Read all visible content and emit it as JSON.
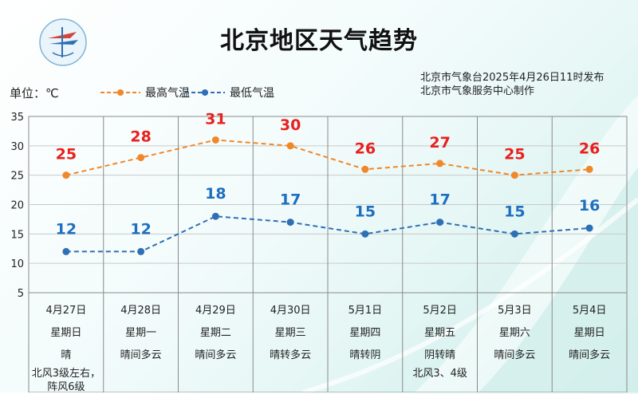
{
  "header": {
    "title": "北京地区天气趋势",
    "source_line1": "北京市气象台2025年4月26日11时发布",
    "source_line2": "北京市气象服务中心制作",
    "unit": "单位：℃"
  },
  "legend": {
    "high": "最高气温",
    "low": "最低气温"
  },
  "colors": {
    "high_line": "#f0882a",
    "high_label": "#e8201e",
    "low_line": "#2f6fb5",
    "low_label": "#1f6fc0",
    "grid": "#8a8a8a"
  },
  "chart_data": {
    "type": "line",
    "categories": [
      "4月27日",
      "4月28日",
      "4月29日",
      "4月30日",
      "5月1日",
      "5月2日",
      "5月3日",
      "5月4日"
    ],
    "series": [
      {
        "name": "最高气温",
        "values": [
          25,
          28,
          31,
          30,
          26,
          27,
          25,
          26
        ]
      },
      {
        "name": "最低气温",
        "values": [
          12,
          12,
          18,
          17,
          15,
          17,
          15,
          16
        ]
      }
    ],
    "ylim": [
      5,
      35
    ],
    "yticks": [
      5,
      10,
      15,
      20,
      25,
      30,
      35
    ],
    "grid": true
  },
  "days": [
    {
      "date": "4月27日",
      "weekday": "星期日",
      "weather": "晴",
      "wind": "北风3级左右，",
      "wind2": "阵风6级"
    },
    {
      "date": "4月28日",
      "weekday": "星期一",
      "weather": "晴间多云",
      "wind": "",
      "wind2": ""
    },
    {
      "date": "4月29日",
      "weekday": "星期二",
      "weather": "晴间多云",
      "wind": "",
      "wind2": ""
    },
    {
      "date": "4月30日",
      "weekday": "星期三",
      "weather": "晴转多云",
      "wind": "",
      "wind2": ""
    },
    {
      "date": "5月1日",
      "weekday": "星期四",
      "weather": "晴转阴",
      "wind": "",
      "wind2": ""
    },
    {
      "date": "5月2日",
      "weekday": "星期五",
      "weather": "阴转晴",
      "wind": "北风3、4级",
      "wind2": ""
    },
    {
      "date": "5月3日",
      "weekday": "星期六",
      "weather": "晴间多云",
      "wind": "",
      "wind2": ""
    },
    {
      "date": "5月4日",
      "weekday": "星期日",
      "weather": "晴间多云",
      "wind": "",
      "wind2": ""
    }
  ]
}
